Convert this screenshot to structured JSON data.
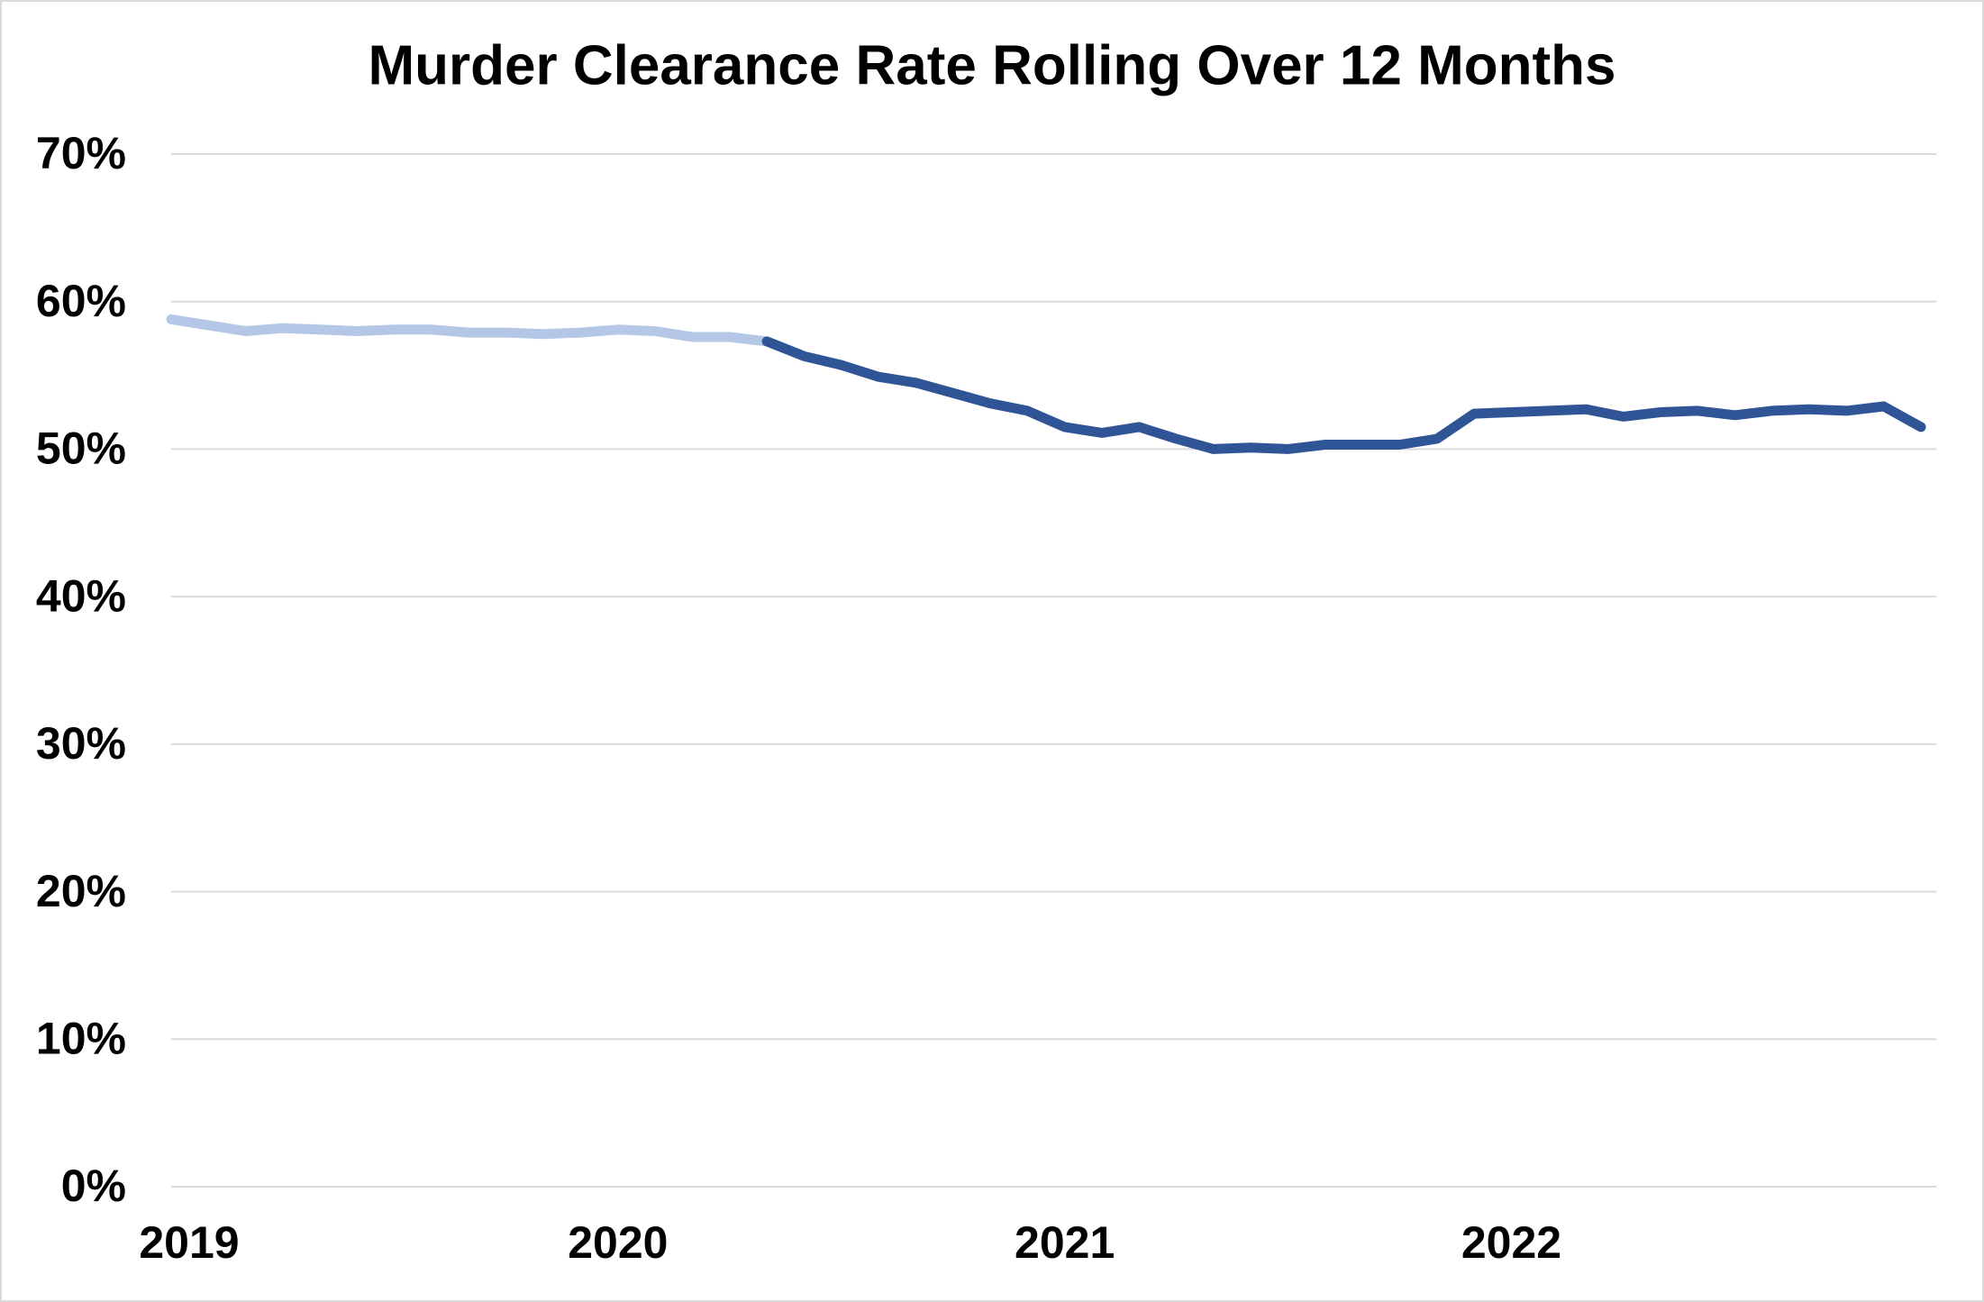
{
  "chart_data": {
    "type": "line",
    "title": "Murder Clearance Rate Rolling Over 12 Months",
    "categories": [
      "2019",
      null,
      null,
      null,
      null,
      null,
      null,
      null,
      null,
      null,
      null,
      null,
      "2020",
      null,
      null,
      null,
      null,
      null,
      null,
      null,
      null,
      null,
      null,
      null,
      "2021",
      null,
      null,
      null,
      null,
      null,
      null,
      null,
      null,
      null,
      null,
      null,
      "2022",
      null,
      null,
      null,
      null,
      null,
      null,
      null,
      null,
      null,
      null,
      null
    ],
    "series": [
      {
        "color": "#b4c7e7",
        "values": [
          58.8,
          58.4,
          58.0,
          58.2,
          58.1,
          58.0,
          58.1,
          58.1,
          57.9,
          57.9,
          57.8,
          57.9,
          58.1,
          58.0,
          57.6,
          57.6,
          57.3,
          null,
          null,
          null,
          null,
          null,
          null,
          null,
          null,
          null,
          null,
          null,
          null,
          null,
          null,
          null,
          null,
          null,
          null,
          null,
          null,
          null,
          null,
          null,
          null,
          null,
          null,
          null,
          null,
          null,
          null,
          null
        ]
      },
      {
        "color": "#2f5597",
        "values": [
          null,
          null,
          null,
          null,
          null,
          null,
          null,
          null,
          null,
          null,
          null,
          null,
          null,
          null,
          null,
          null,
          57.3,
          56.3,
          55.7,
          54.9,
          54.5,
          53.8,
          53.1,
          52.6,
          51.5,
          51.1,
          51.5,
          50.7,
          50.0,
          50.1,
          50.0,
          50.3,
          50.3,
          50.3,
          50.7,
          52.4,
          52.5,
          52.6,
          52.7,
          52.2,
          52.5,
          52.6,
          52.3,
          52.6,
          52.7,
          52.6,
          52.9,
          51.5
        ]
      }
    ],
    "ylim": [
      0,
      70
    ],
    "yticks": [
      {
        "value": 0,
        "label": "0%"
      },
      {
        "value": 10,
        "label": "10%"
      },
      {
        "value": 20,
        "label": "20%"
      },
      {
        "value": 30,
        "label": "30%"
      },
      {
        "value": 40,
        "label": "40%"
      },
      {
        "value": 50,
        "label": "50%"
      },
      {
        "value": 60,
        "label": "60%"
      },
      {
        "value": 70,
        "label": "70%"
      }
    ],
    "grid": true
  }
}
